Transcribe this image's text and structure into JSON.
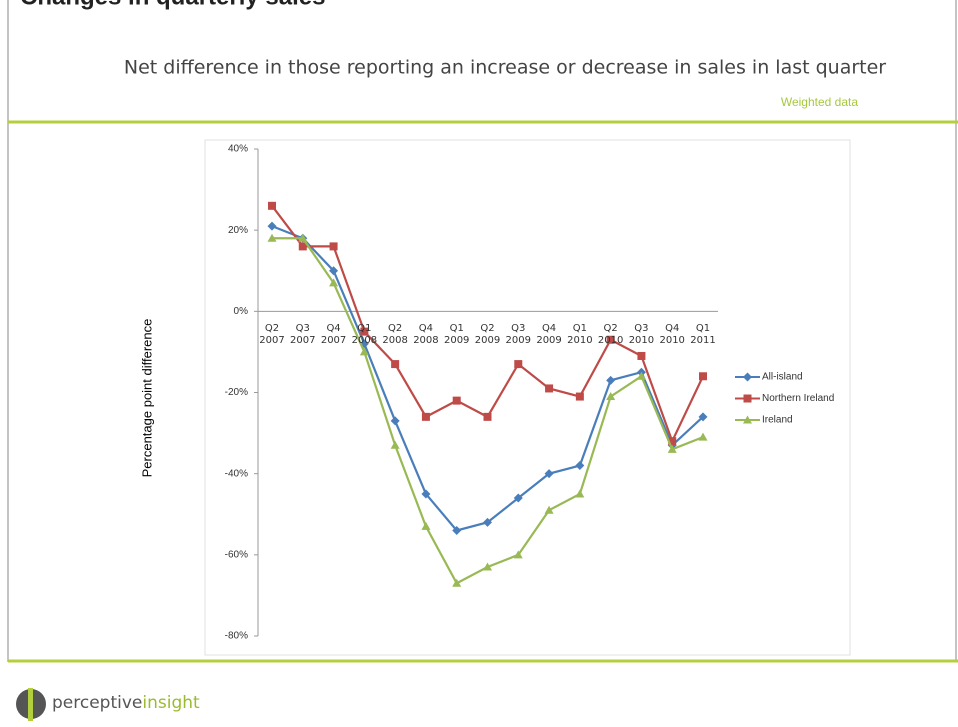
{
  "header": {
    "title": "Changes in quarterly sales",
    "subtitle": "Net difference in those reporting an increase or decrease in sales in last quarter",
    "note": "Weighted data"
  },
  "chart_data": {
    "type": "line",
    "y_label": "Percentage point difference",
    "categories": [
      "Q2 2007",
      "Q3 2007",
      "Q4 2007",
      "Q1 2008",
      "Q2 2008",
      "Q4 2008",
      "Q1 2009",
      "Q2 2009",
      "Q3 2009",
      "Q4 2009",
      "Q1 2010",
      "Q2 2010",
      "Q3 2010",
      "Q4 2010",
      "Q1 2011"
    ],
    "series": [
      {
        "name": "All-island",
        "color": "#4a7ebb",
        "marker": "diamond",
        "values": [
          21,
          18,
          10,
          -8,
          -27,
          -45,
          -54,
          -52,
          -46,
          -40,
          -38,
          -17,
          -15,
          -33,
          -26
        ]
      },
      {
        "name": "Northern Ireland",
        "color": "#be4b48",
        "marker": "square",
        "values": [
          26,
          16,
          16,
          -5,
          -13,
          -26,
          -22,
          -26,
          -13,
          -19,
          -21,
          -7,
          -11,
          -32,
          -16
        ]
      },
      {
        "name": "Ireland",
        "color": "#98b954",
        "marker": "triangle",
        "values": [
          18,
          18,
          7,
          -10,
          -33,
          -53,
          -67,
          -63,
          -60,
          -49,
          -45,
          -21,
          -16,
          -34,
          -31
        ]
      }
    ],
    "ylim": [
      -80,
      40
    ],
    "yticks": [
      {
        "value": -80,
        "label": "-80%"
      },
      {
        "value": -60,
        "label": "-60%"
      },
      {
        "value": -40,
        "label": "-40%"
      },
      {
        "value": -20,
        "label": "-20%"
      },
      {
        "value": 0,
        "label": "0%"
      },
      {
        "value": 20,
        "label": "20%"
      },
      {
        "value": 40,
        "label": "40%"
      }
    ],
    "legend": "right"
  },
  "footer": {
    "logo_a": "perceptive",
    "logo_b": "insight"
  }
}
